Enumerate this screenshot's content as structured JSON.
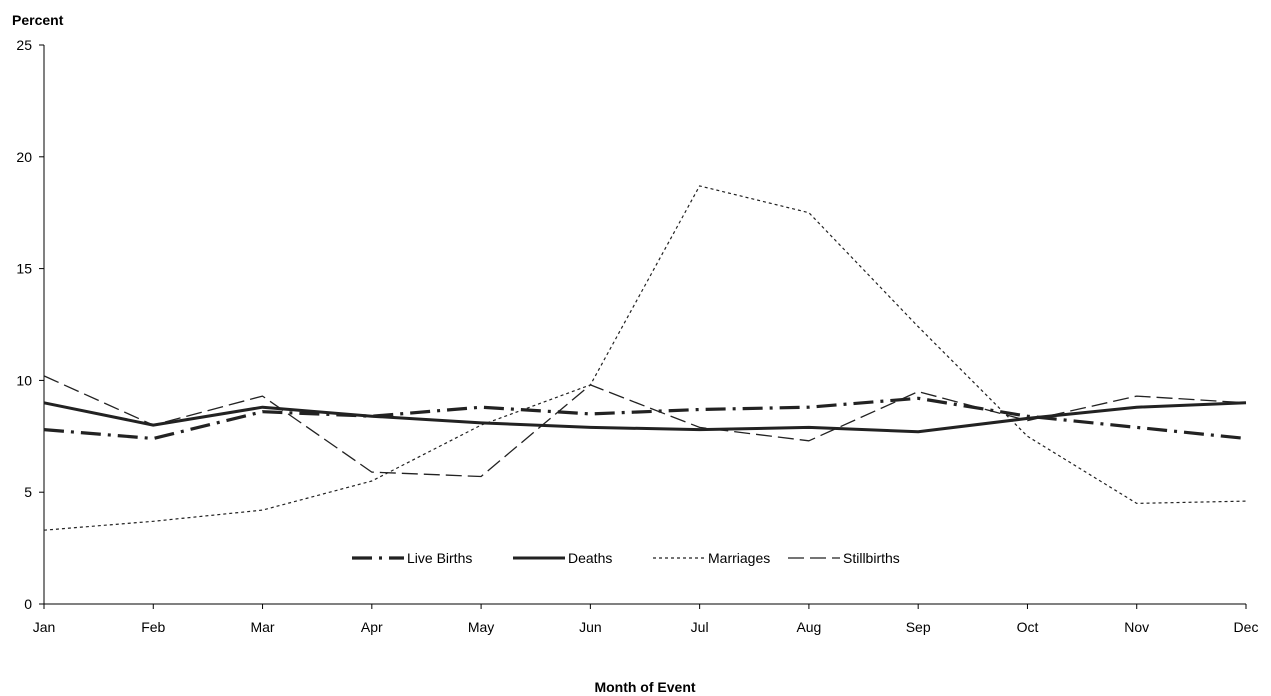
{
  "chart_data": {
    "type": "line",
    "title": "",
    "xlabel": "Month of Event",
    "ylabel": "Percent",
    "categories": [
      "Jan",
      "Feb",
      "Mar",
      "Apr",
      "May",
      "Jun",
      "Jul",
      "Aug",
      "Sep",
      "Oct",
      "Nov",
      "Dec"
    ],
    "ylim": [
      0,
      25
    ],
    "yticks": [
      "0",
      "5",
      "10",
      "15",
      "20",
      "25"
    ],
    "grid": false,
    "legend_position": "bottom-center",
    "series": [
      {
        "name": "Live Births",
        "style": "dash-dot",
        "stroke_color": "#222222",
        "values": [
          7.8,
          7.4,
          8.6,
          8.4,
          8.8,
          8.5,
          8.7,
          8.8,
          9.2,
          8.4,
          7.9,
          7.4
        ]
      },
      {
        "name": "Deaths",
        "style": "solid",
        "stroke_color": "#222222",
        "values": [
          9.0,
          8.0,
          8.8,
          8.4,
          8.1,
          7.9,
          7.8,
          7.9,
          7.7,
          8.3,
          8.8,
          9.0
        ]
      },
      {
        "name": "Marriages",
        "style": "dotted",
        "stroke_color": "#222222",
        "values": [
          3.3,
          3.7,
          4.2,
          5.5,
          8.0,
          9.8,
          18.7,
          17.5,
          12.4,
          7.5,
          4.5,
          4.6
        ]
      },
      {
        "name": "Stillbirths",
        "style": "dashed",
        "stroke_color": "#222222",
        "values": [
          10.2,
          8.0,
          9.3,
          5.9,
          5.7,
          9.8,
          7.9,
          7.3,
          9.5,
          8.2,
          9.3,
          9.0
        ]
      }
    ]
  }
}
